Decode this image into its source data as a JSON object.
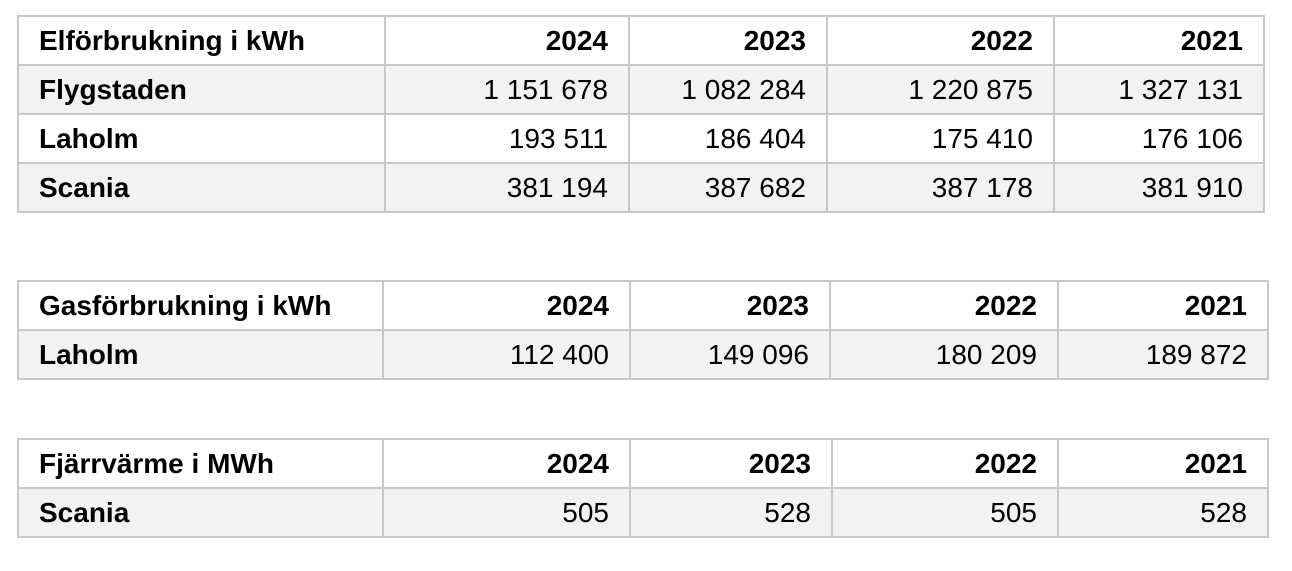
{
  "tables": [
    {
      "header": [
        "Elförbrukning i kWh",
        "2024",
        "2023",
        "2022",
        "2021"
      ],
      "rows": [
        [
          "Flygstaden",
          "1 151 678",
          "1 082 284",
          "1 220 875",
          "1 327 131"
        ],
        [
          "Laholm",
          "193 511",
          "186 404",
          "175 410",
          "176 106"
        ],
        [
          "Scania",
          "381 194",
          "387 682",
          "387 178",
          "381 910"
        ]
      ]
    },
    {
      "header": [
        "Gasförbrukning i kWh",
        "2024",
        "2023",
        "2022",
        "2021"
      ],
      "rows": [
        [
          "Laholm",
          "112 400",
          "149 096",
          "180 209",
          "189 872"
        ]
      ]
    },
    {
      "header": [
        "Fjärrvärme i MWh",
        "2024",
        "2023",
        "2022",
        "2021"
      ],
      "rows": [
        [
          "Scania",
          "505",
          "528",
          "505",
          "528"
        ]
      ]
    }
  ]
}
